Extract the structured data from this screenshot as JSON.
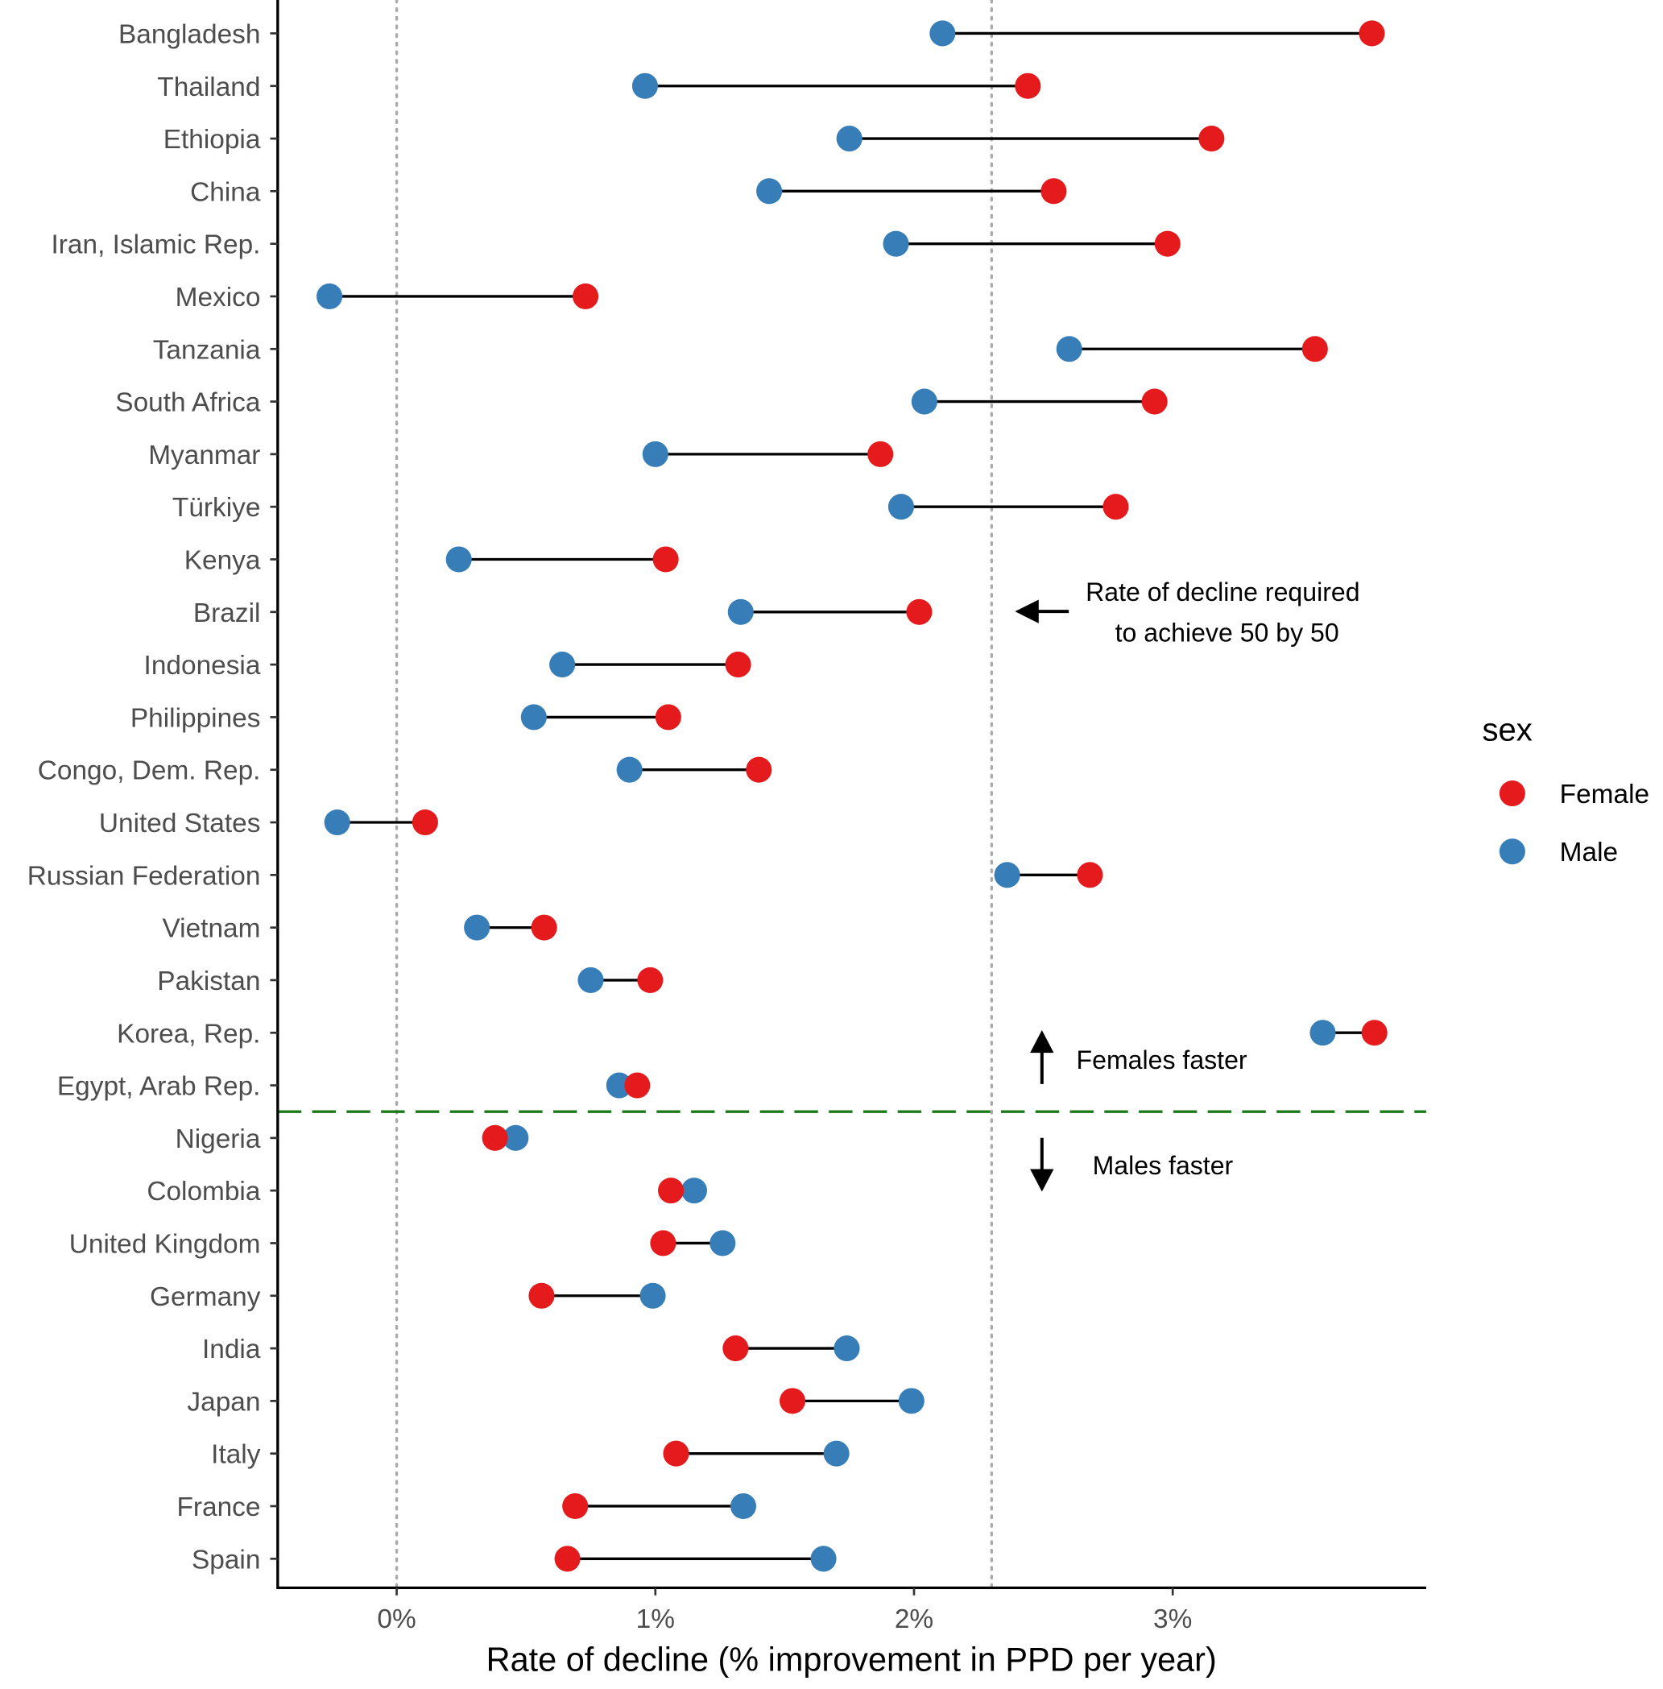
{
  "chart_data": {
    "type": "dumbbell",
    "xlabel": "Rate of decline (% improvement in PPD per year)",
    "xlim": [
      -0.46,
      3.98
    ],
    "xticks": [
      0,
      1,
      2,
      3
    ],
    "xtick_labels": [
      "0%",
      "1%",
      "2%",
      "3%"
    ],
    "reference_lines": {
      "zero": 0,
      "target": 2.3
    },
    "colors": {
      "Female": "#e41a1c",
      "Male": "#377eb8",
      "divider": "#1a7a1a"
    },
    "legend": {
      "title": "sex",
      "entries": [
        "Female",
        "Male"
      ],
      "placement": "right"
    },
    "annotations": {
      "target_line1": "Rate of decline required",
      "target_line2": "to achieve 50 by 50",
      "females_faster": "Females faster",
      "males_faster": "Males faster"
    },
    "divider_after": "Egypt, Arab Rep.",
    "categories": [
      "Bangladesh",
      "Thailand",
      "Ethiopia",
      "China",
      "Iran, Islamic Rep.",
      "Mexico",
      "Tanzania",
      "South Africa",
      "Myanmar",
      "Türkiye",
      "Kenya",
      "Brazil",
      "Indonesia",
      "Philippines",
      "Congo, Dem. Rep.",
      "United States",
      "Russian Federation",
      "Vietnam",
      "Pakistan",
      "Korea, Rep.",
      "Egypt, Arab Rep.",
      "Nigeria",
      "Colombia",
      "United Kingdom",
      "Germany",
      "India",
      "Japan",
      "Italy",
      "France",
      "Spain"
    ],
    "series": [
      {
        "name": "Female",
        "values": [
          3.77,
          2.44,
          3.15,
          2.54,
          2.98,
          0.73,
          3.55,
          2.93,
          1.87,
          2.78,
          1.04,
          2.02,
          1.32,
          1.05,
          1.4,
          0.11,
          2.68,
          0.57,
          0.98,
          3.78,
          0.93,
          0.38,
          1.06,
          1.03,
          0.56,
          1.31,
          1.53,
          1.08,
          0.69,
          0.66
        ]
      },
      {
        "name": "Male",
        "values": [
          2.11,
          0.96,
          1.75,
          1.44,
          1.93,
          -0.26,
          2.6,
          2.04,
          1.0,
          1.95,
          0.24,
          1.33,
          0.64,
          0.53,
          0.9,
          -0.23,
          2.36,
          0.31,
          0.75,
          3.58,
          0.86,
          0.46,
          1.15,
          1.26,
          0.99,
          1.74,
          1.99,
          1.7,
          1.34,
          1.65
        ]
      }
    ]
  }
}
